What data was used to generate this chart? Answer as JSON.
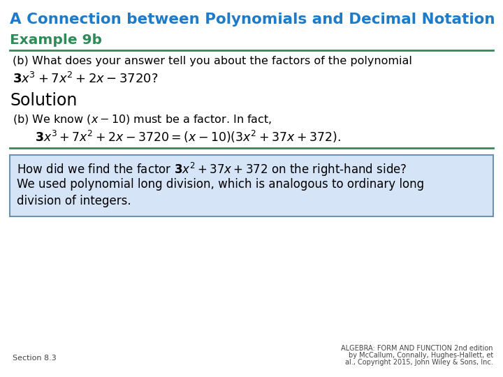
{
  "title": "A Connection between Polynomials and Decimal Notation",
  "title_color": "#1F7BC8",
  "example_label": "Example 9b",
  "example_color": "#2E8B57",
  "bg_color": "#FFFFFF",
  "line_color": "#2E8B57",
  "box_bg": "#D6E4F7",
  "box_border": "#7090B0",
  "footer_left": "Section 8.3",
  "footer_right_line1": "ALGEBRA: FORM AND FUNCTION 2nd edition",
  "footer_right_line2": "by McCallum, Connally, Hughes-Hallett, et",
  "footer_right_line3": "al., Copyright 2015, John Wiley & Sons, Inc."
}
